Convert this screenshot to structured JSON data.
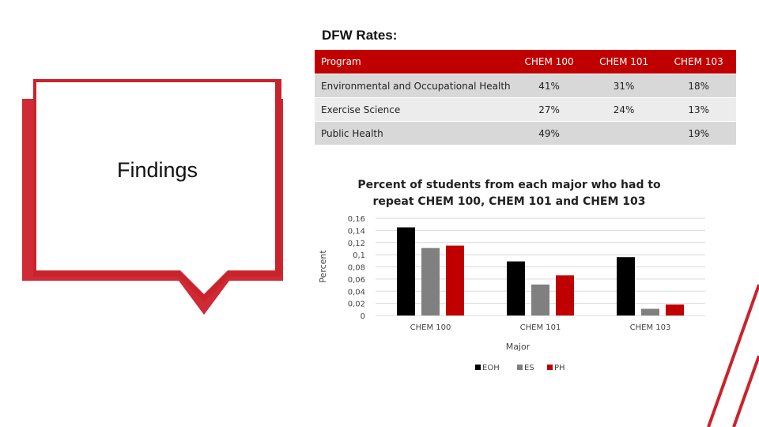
{
  "side": {
    "title": "Findings"
  },
  "table": {
    "heading": "DFW Rates:",
    "headers": [
      "Program",
      "CHEM 100",
      "CHEM 101",
      "CHEM 103"
    ],
    "rows": [
      [
        "Environmental and Occupational Health",
        "41%",
        "31%",
        "18%"
      ],
      [
        "Exercise Science",
        "27%",
        "24%",
        "13%"
      ],
      [
        "Public Health",
        "49%",
        "",
        "19%"
      ]
    ]
  },
  "chart_data": {
    "type": "bar",
    "title_lines": [
      "Percent of students from each major who had to",
      "repeat CHEM 100, CHEM 101 and CHEM 103"
    ],
    "xlabel": "Major",
    "ylabel": "Percent",
    "categories": [
      "CHEM 100",
      "CHEM 101",
      "CHEM 103"
    ],
    "y_ticks": [
      "0",
      "0,02",
      "0,04",
      "0,06",
      "0,08",
      "0,1",
      "0,12",
      "0,14",
      "0,16"
    ],
    "ylim": [
      0,
      0.16
    ],
    "grid": true,
    "legend_position": "bottom",
    "series": [
      {
        "name": "EOH",
        "color": "#000000",
        "values": [
          0.145,
          0.089,
          0.096
        ]
      },
      {
        "name": "ES",
        "color": "#808080",
        "values": [
          0.111,
          0.051,
          0.011
        ]
      },
      {
        "name": "PH",
        "color": "#c00000",
        "values": [
          0.115,
          0.066,
          0.018
        ]
      }
    ]
  },
  "colors": {
    "accent": "#c9242b",
    "table_header": "#c00000"
  }
}
